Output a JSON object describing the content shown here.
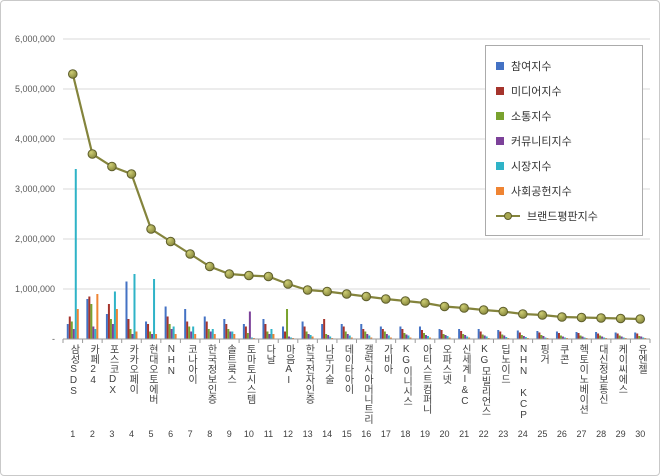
{
  "chart_data": {
    "type": "combo-bar-line",
    "title": "",
    "categories": [
      "삼성SDS",
      "카페24",
      "포스코DX",
      "카카오페이",
      "현대오토에버",
      "NHN",
      "코나아이",
      "한국정보인증",
      "솔트룩스",
      "토마토시스템",
      "다날",
      "마음AI",
      "한국전자인증",
      "나무기술",
      "데이타아이",
      "갤럭시아머니트리",
      "가비아",
      "KG이니시스",
      "아티스트컴퍼니",
      "오파스넷",
      "신세계I&C",
      "KG모빌리언스",
      "딥노이드",
      "NHN KCP",
      "핑거",
      "쿠콘",
      "헥토이노베이션",
      "대신정보통신",
      "케이씨에스",
      "유엔젤"
    ],
    "ranks": [
      1,
      2,
      3,
      4,
      5,
      6,
      7,
      8,
      9,
      10,
      11,
      12,
      13,
      14,
      15,
      16,
      17,
      18,
      19,
      20,
      21,
      22,
      23,
      24,
      25,
      26,
      27,
      28,
      29,
      30
    ],
    "y_axis": {
      "min": 0,
      "max": 6000000,
      "grid": true,
      "tick_values": [
        6000000,
        5000000,
        4000000,
        3000000,
        2000000,
        1000000,
        0
      ],
      "tick_labels": [
        "6,000,000",
        "5,000,000",
        "4,000,000",
        "3,000,000",
        "2,000,000",
        "1,000,000",
        "-"
      ]
    },
    "legend": {
      "position": "top-right-inside"
    },
    "axis_colors": {
      "grid": "#d9d9d9",
      "axis": "#9b9b9b",
      "tick_text": "#595959"
    },
    "series": [
      {
        "name": "참여지수",
        "type": "bar",
        "color": "#4472c4",
        "values": [
          300000,
          800000,
          500000,
          1150000,
          350000,
          650000,
          600000,
          450000,
          400000,
          300000,
          400000,
          250000,
          350000,
          300000,
          300000,
          300000,
          250000,
          250000,
          250000,
          200000,
          200000,
          200000,
          180000,
          170000,
          160000,
          150000,
          140000,
          140000,
          130000,
          130000
        ]
      },
      {
        "name": "미디어지수",
        "type": "bar",
        "color": "#a5342c",
        "values": [
          450000,
          850000,
          700000,
          400000,
          300000,
          450000,
          350000,
          350000,
          300000,
          250000,
          300000,
          150000,
          250000,
          400000,
          250000,
          200000,
          200000,
          200000,
          180000,
          180000,
          160000,
          150000,
          150000,
          130000,
          130000,
          120000,
          120000,
          110000,
          110000,
          110000
        ]
      },
      {
        "name": "소통지수",
        "type": "bar",
        "color": "#79a22e",
        "values": [
          350000,
          700000,
          400000,
          200000,
          150000,
          300000,
          250000,
          200000,
          200000,
          120000,
          150000,
          600000,
          150000,
          100000,
          150000,
          150000,
          150000,
          120000,
          120000,
          100000,
          100000,
          90000,
          90000,
          80000,
          80000,
          70000,
          70000,
          70000,
          70000,
          60000
        ]
      },
      {
        "name": "커뮤니티지수",
        "type": "bar",
        "color": "#7c4199",
        "values": [
          200000,
          250000,
          300000,
          100000,
          100000,
          200000,
          150000,
          150000,
          150000,
          550000,
          100000,
          50000,
          100000,
          80000,
          100000,
          100000,
          100000,
          90000,
          80000,
          80000,
          80000,
          70000,
          70000,
          60000,
          60000,
          50000,
          50000,
          50000,
          50000,
          50000
        ]
      },
      {
        "name": "시장지수",
        "type": "bar",
        "color": "#2fb3c7",
        "values": [
          3400000,
          200000,
          950000,
          1300000,
          1200000,
          250000,
          250000,
          200000,
          150000,
          30000,
          200000,
          30000,
          80000,
          50000,
          70000,
          70000,
          70000,
          70000,
          60000,
          60000,
          50000,
          50000,
          40000,
          40000,
          30000,
          30000,
          30000,
          30000,
          30000,
          30000
        ]
      },
      {
        "name": "사회공헌지수",
        "type": "bar",
        "color": "#ef8433",
        "values": [
          600000,
          900000,
          600000,
          150000,
          100000,
          100000,
          100000,
          100000,
          100000,
          20000,
          100000,
          20000,
          50000,
          20000,
          30000,
          30000,
          30000,
          30000,
          30000,
          30000,
          30000,
          20000,
          20000,
          20000,
          20000,
          20000,
          20000,
          20000,
          20000,
          20000
        ]
      },
      {
        "name": "브랜드평판지수",
        "type": "line",
        "color": "#84843c",
        "marker_fill": "#a8a851",
        "marker_edge": "#5e5e2b",
        "values": [
          5300000,
          3700000,
          3450000,
          3300000,
          2200000,
          1950000,
          1700000,
          1450000,
          1300000,
          1270000,
          1250000,
          1100000,
          980000,
          950000,
          900000,
          850000,
          800000,
          760000,
          720000,
          650000,
          620000,
          580000,
          550000,
          500000,
          480000,
          440000,
          430000,
          420000,
          410000,
          400000
        ]
      }
    ]
  }
}
